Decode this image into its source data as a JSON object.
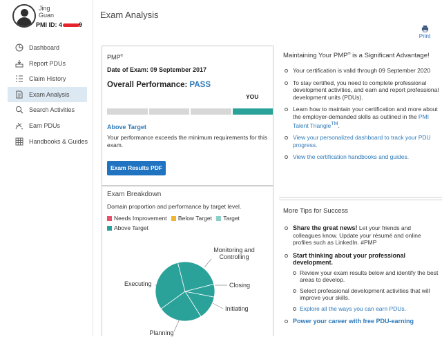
{
  "profile": {
    "first_name": "Jing",
    "last_name": "Guan",
    "pmi_id_label": "PMI ID: 4",
    "pmi_id_tail": "9"
  },
  "sidebar": {
    "items": [
      {
        "label": "Dashboard",
        "icon": "dashboard-icon"
      },
      {
        "label": "Report PDUs",
        "icon": "report-pdus-icon"
      },
      {
        "label": "Claim History",
        "icon": "list-icon"
      },
      {
        "label": "Exam Analysis",
        "icon": "document-icon",
        "active": true
      },
      {
        "label": "Search Activities",
        "icon": "search-icon"
      },
      {
        "label": "Earn PDUs",
        "icon": "earn-icon"
      },
      {
        "label": "Handbooks & Guides",
        "icon": "grid-icon"
      }
    ]
  },
  "header": {
    "title": "Exam Analysis",
    "print_label": "Print"
  },
  "exam": {
    "cert_name": "PMP",
    "cert_mark": "®",
    "date": "Date of Exam: 09 September 2017",
    "overall_label": "Overall Performance: ",
    "overall_result": "PASS",
    "you_label": "YOU",
    "performance_level_index": 3,
    "performance_levels": 4,
    "level_title": "Above Target",
    "level_desc": "Your performance exceeds the minimum requirements for this exam.",
    "pdf_button": "Exam Results PDF"
  },
  "breakdown": {
    "title": "Exam Breakdown",
    "desc": "Domain proportion and performance by target level.",
    "legend": [
      {
        "label": "Needs Improvement",
        "color": "#e8506e"
      },
      {
        "label": "Below Target",
        "color": "#f2b531"
      },
      {
        "label": "Target",
        "color": "#8ccfc6"
      },
      {
        "label": "Above Target",
        "color": "#2aa199"
      }
    ]
  },
  "chart_data": {
    "type": "pie",
    "title": "",
    "slices": [
      {
        "label": "Initiating",
        "value": 13,
        "level": "Above Target"
      },
      {
        "label": "Planning",
        "value": 24,
        "level": "Above Target"
      },
      {
        "label": "Executing",
        "value": 31,
        "level": "Above Target"
      },
      {
        "label": "Monitoring and Controlling",
        "value": 25,
        "level": "Above Target"
      },
      {
        "label": "Closing",
        "value": 7,
        "level": "Above Target"
      }
    ],
    "colors": {
      "Above Target": "#2aa199"
    }
  },
  "maintain": {
    "title": "Maintaining Your PMP",
    "title_mark": "®",
    "title_tail": " is a Significant Advantage!",
    "items": [
      {
        "text": "Your certification is valid through 09 September 2020"
      },
      {
        "text": "To stay certified, you need to complete professional development activities, and earn and report professional development units (PDUs)."
      },
      {
        "text": "Learn how to maintain your certification and more about the employer-demanded skills as outlined in the ",
        "link": "PMI Talent Triangle",
        "link_mark": "TM",
        "tail": "."
      },
      {
        "link": "View your personalized dashboard to track your PDU progress."
      },
      {
        "link": "View the certification handbooks and guides."
      }
    ]
  },
  "tips": {
    "title": "More Tips for Success",
    "share_strong": "Share the great news!",
    "share_text": " Let your friends and colleagues know. Update your résumé and online profiles such as LinkedIn. #PMP",
    "start_strong": "Start thinking about your professional development.",
    "sub_items": [
      {
        "text": "Review your exam results below and identify the best areas to develop."
      },
      {
        "text": "Select professional development activities that will improve your skills."
      },
      {
        "link": "Explore all the ways you can earn PDUs."
      }
    ],
    "power_link": "Power your career with free PDU-earning"
  }
}
